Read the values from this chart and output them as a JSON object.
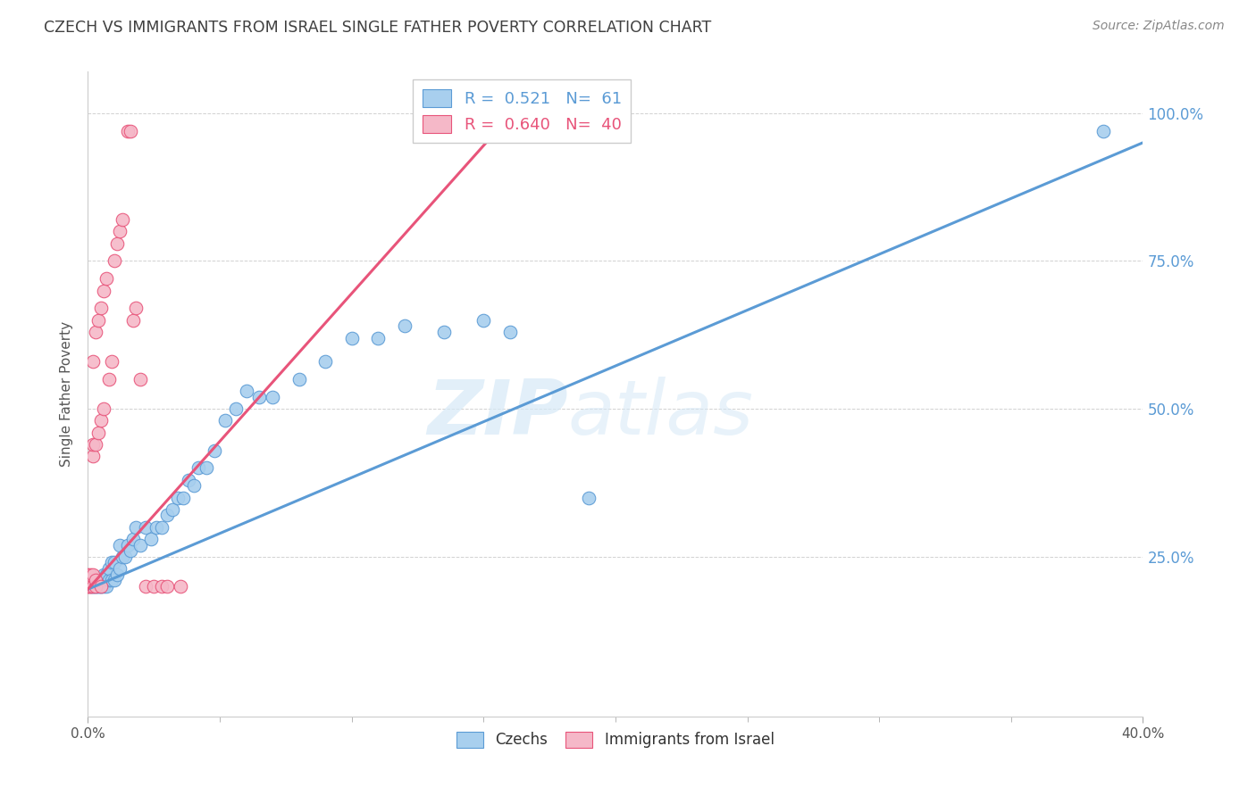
{
  "title": "CZECH VS IMMIGRANTS FROM ISRAEL SINGLE FATHER POVERTY CORRELATION CHART",
  "source": "Source: ZipAtlas.com",
  "ylabel": "Single Father Poverty",
  "right_yticks": [
    "25.0%",
    "50.0%",
    "75.0%",
    "100.0%"
  ],
  "right_ytick_vals": [
    0.25,
    0.5,
    0.75,
    1.0
  ],
  "watermark_zip": "ZIP",
  "watermark_atlas": "atlas",
  "legend_blue_r": "0.521",
  "legend_blue_n": "61",
  "legend_pink_r": "0.640",
  "legend_pink_n": "40",
  "blue_color": "#A8CFEE",
  "pink_color": "#F5B8C8",
  "blue_line_color": "#5B9BD5",
  "pink_line_color": "#E8547A",
  "title_color": "#404040",
  "right_axis_color": "#5B9BD5",
  "source_color": "#888888",
  "xlim": [
    0.0,
    0.4
  ],
  "ylim": [
    -0.02,
    1.07
  ],
  "blue_scatter_x": [
    0.001,
    0.002,
    0.002,
    0.003,
    0.003,
    0.003,
    0.004,
    0.004,
    0.004,
    0.005,
    0.005,
    0.005,
    0.006,
    0.006,
    0.006,
    0.007,
    0.007,
    0.008,
    0.008,
    0.009,
    0.009,
    0.01,
    0.01,
    0.011,
    0.012,
    0.012,
    0.013,
    0.014,
    0.015,
    0.016,
    0.017,
    0.018,
    0.02,
    0.022,
    0.024,
    0.026,
    0.028,
    0.03,
    0.032,
    0.034,
    0.036,
    0.038,
    0.04,
    0.042,
    0.045,
    0.048,
    0.052,
    0.056,
    0.06,
    0.065,
    0.07,
    0.08,
    0.09,
    0.1,
    0.11,
    0.12,
    0.135,
    0.15,
    0.16,
    0.19,
    0.385
  ],
  "blue_scatter_y": [
    0.2,
    0.2,
    0.2,
    0.2,
    0.2,
    0.21,
    0.2,
    0.2,
    0.21,
    0.2,
    0.2,
    0.21,
    0.2,
    0.21,
    0.22,
    0.2,
    0.22,
    0.21,
    0.23,
    0.21,
    0.24,
    0.21,
    0.24,
    0.22,
    0.23,
    0.27,
    0.25,
    0.25,
    0.27,
    0.26,
    0.28,
    0.3,
    0.27,
    0.3,
    0.28,
    0.3,
    0.3,
    0.32,
    0.33,
    0.35,
    0.35,
    0.38,
    0.37,
    0.4,
    0.4,
    0.43,
    0.48,
    0.5,
    0.53,
    0.52,
    0.52,
    0.55,
    0.58,
    0.62,
    0.62,
    0.64,
    0.63,
    0.65,
    0.63,
    0.35,
    0.97
  ],
  "pink_scatter_x": [
    0.0,
    0.0,
    0.0,
    0.001,
    0.001,
    0.001,
    0.001,
    0.002,
    0.002,
    0.002,
    0.002,
    0.002,
    0.003,
    0.003,
    0.003,
    0.003,
    0.004,
    0.004,
    0.005,
    0.005,
    0.005,
    0.006,
    0.006,
    0.007,
    0.008,
    0.009,
    0.01,
    0.011,
    0.012,
    0.013,
    0.015,
    0.016,
    0.017,
    0.018,
    0.02,
    0.022,
    0.025,
    0.028,
    0.03,
    0.035
  ],
  "pink_scatter_y": [
    0.2,
    0.2,
    0.22,
    0.2,
    0.2,
    0.21,
    0.22,
    0.2,
    0.22,
    0.42,
    0.44,
    0.58,
    0.2,
    0.21,
    0.44,
    0.63,
    0.46,
    0.65,
    0.2,
    0.48,
    0.67,
    0.5,
    0.7,
    0.72,
    0.55,
    0.58,
    0.75,
    0.78,
    0.8,
    0.82,
    0.97,
    0.97,
    0.65,
    0.67,
    0.55,
    0.2,
    0.2,
    0.2,
    0.2,
    0.2
  ],
  "blue_line_x": [
    0.0,
    0.4
  ],
  "blue_line_y": [
    0.195,
    0.95
  ],
  "pink_line_x": [
    0.0,
    0.155
  ],
  "pink_line_y": [
    0.195,
    0.97
  ]
}
